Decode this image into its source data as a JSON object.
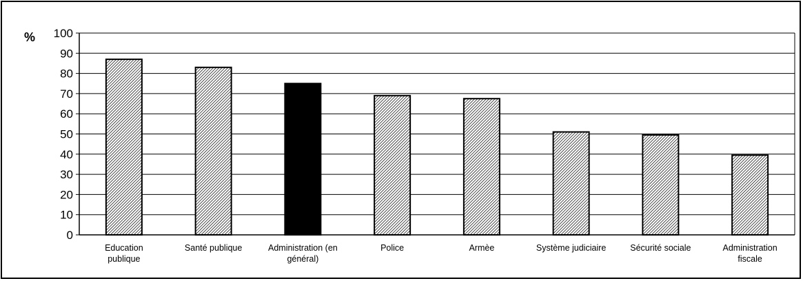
{
  "chart_data": {
    "type": "bar",
    "unit_label": "%",
    "categories": [
      [
        "Education",
        "publique"
      ],
      [
        "Santé publique"
      ],
      [
        "Administration (en",
        "général)"
      ],
      [
        "Police"
      ],
      [
        "Armèe"
      ],
      [
        "Système judiciaire"
      ],
      [
        "Sécurité sociale"
      ],
      [
        "Administration",
        "fiscale"
      ]
    ],
    "values": [
      87,
      83,
      75,
      69,
      67.5,
      51,
      49.5,
      39.5
    ],
    "highlighted_index": 2,
    "ylim": [
      0,
      100
    ],
    "y_ticks": [
      0,
      10,
      20,
      30,
      40,
      50,
      60,
      70,
      80,
      90,
      100
    ],
    "grid": true,
    "colors": {
      "bar_hatch": "#000000",
      "bar_highlight": "#000000",
      "grid": "#000000"
    }
  }
}
